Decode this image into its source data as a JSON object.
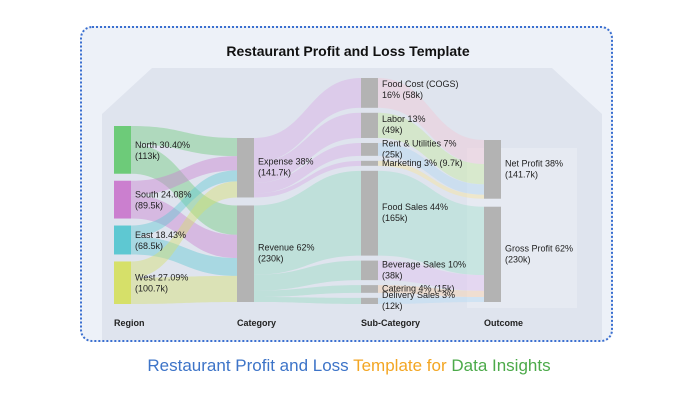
{
  "colors": {
    "frame_border": "#3a6fd0",
    "frame_bg": "#edf1f8",
    "house_silhouette": "#dfe4ee",
    "grey_node": "#b3b3b3",
    "caption_blue": "#3d74c8",
    "caption_orange": "#f3a623",
    "caption_green": "#4caa4a"
  },
  "caption": {
    "part1": "Restaurant Profit and Loss ",
    "part2": "Template for ",
    "part3": "Data Insights"
  },
  "chart_data": {
    "type": "sankey",
    "title": "Restaurant Profit and Loss Template",
    "columns": [
      "Region",
      "Category",
      "Sub-Category",
      "Outcome"
    ],
    "nodes": [
      {
        "id": "north",
        "column": 0,
        "name": "North",
        "pct": "30.40%",
        "value_label": "(113k)",
        "value": 113,
        "color": "#6dcb79"
      },
      {
        "id": "south",
        "column": 0,
        "name": "South",
        "pct": "24.08%",
        "value_label": "(89.5k)",
        "value": 89.5,
        "color": "#cb7fcf"
      },
      {
        "id": "east",
        "column": 0,
        "name": "East",
        "pct": "18.43%",
        "value_label": "(68.5k)",
        "value": 68.5,
        "color": "#5ec8d2"
      },
      {
        "id": "west",
        "column": 0,
        "name": "West",
        "pct": "27.09%",
        "value_label": "(100.7k)",
        "value": 100.7,
        "color": "#d6e069"
      },
      {
        "id": "expense",
        "column": 1,
        "name": "Expense",
        "pct": "38%",
        "value_label": "(141.7k)",
        "value": 141.7,
        "color": "#b3b3b3"
      },
      {
        "id": "revenue",
        "column": 1,
        "name": "Revenue",
        "pct": "62%",
        "value_label": "(230k)",
        "value": 230,
        "color": "#b3b3b3"
      },
      {
        "id": "food_cost",
        "column": 2,
        "name": "Food Cost (COGS)",
        "pct": "16%",
        "value_label": "(58k)",
        "value": 58,
        "color": "#b3b3b3"
      },
      {
        "id": "labor",
        "column": 2,
        "name": "Labor",
        "pct": "13%",
        "value_label": "(49k)",
        "value": 49,
        "color": "#b3b3b3"
      },
      {
        "id": "rent",
        "column": 2,
        "name": "Rent & Utilities",
        "pct": "7%",
        "value_label": "(25k)",
        "value": 25,
        "color": "#b3b3b3"
      },
      {
        "id": "marketing",
        "column": 2,
        "name": "Marketing",
        "pct": "3%",
        "value_label": "(9.7k)",
        "value": 9.7,
        "color": "#b3b3b3"
      },
      {
        "id": "food_sales",
        "column": 2,
        "name": "Food Sales",
        "pct": "44%",
        "value_label": "(165k)",
        "value": 165,
        "color": "#b3b3b3"
      },
      {
        "id": "beverage",
        "column": 2,
        "name": "Beverage Sales",
        "pct": "10%",
        "value_label": "(38k)",
        "value": 38,
        "color": "#b3b3b3"
      },
      {
        "id": "catering",
        "column": 2,
        "name": "Catering",
        "pct": "4%",
        "value_label": "(15k)",
        "value": 15,
        "color": "#b3b3b3"
      },
      {
        "id": "delivery",
        "column": 2,
        "name": "Delivery Sales",
        "pct": "3%",
        "value_label": "(12k)",
        "value": 12,
        "color": "#b3b3b3"
      },
      {
        "id": "net_profit",
        "column": 3,
        "name": "Net Profit",
        "pct": "38%",
        "value_label": "(141.7k)",
        "value": 141.7,
        "color": "#b3b3b3"
      },
      {
        "id": "gross_profit",
        "column": 3,
        "name": "Gross Profit",
        "pct": "62%",
        "value_label": "(230k)",
        "value": 230,
        "color": "#b3b3b3"
      }
    ],
    "links": [
      {
        "source": "north",
        "target": "expense",
        "value": 43.1
      },
      {
        "source": "north",
        "target": "revenue",
        "value": 69.9
      },
      {
        "source": "south",
        "target": "expense",
        "value": 34.1
      },
      {
        "source": "south",
        "target": "revenue",
        "value": 55.4
      },
      {
        "source": "east",
        "target": "expense",
        "value": 26.1
      },
      {
        "source": "east",
        "target": "revenue",
        "value": 42.4
      },
      {
        "source": "west",
        "target": "expense",
        "value": 38.4
      },
      {
        "source": "west",
        "target": "revenue",
        "value": 62.3
      },
      {
        "source": "expense",
        "target": "food_cost",
        "value": 58
      },
      {
        "source": "expense",
        "target": "labor",
        "value": 49
      },
      {
        "source": "expense",
        "target": "rent",
        "value": 25
      },
      {
        "source": "expense",
        "target": "marketing",
        "value": 9.7
      },
      {
        "source": "revenue",
        "target": "food_sales",
        "value": 165
      },
      {
        "source": "revenue",
        "target": "beverage",
        "value": 38
      },
      {
        "source": "revenue",
        "target": "catering",
        "value": 15
      },
      {
        "source": "revenue",
        "target": "delivery",
        "value": 12
      },
      {
        "source": "food_cost",
        "target": "net_profit",
        "value": 58
      },
      {
        "source": "labor",
        "target": "net_profit",
        "value": 49
      },
      {
        "source": "rent",
        "target": "net_profit",
        "value": 25
      },
      {
        "source": "marketing",
        "target": "net_profit",
        "value": 9.7
      },
      {
        "source": "food_sales",
        "target": "gross_profit",
        "value": 165
      },
      {
        "source": "beverage",
        "target": "gross_profit",
        "value": 38
      },
      {
        "source": "catering",
        "target": "gross_profit",
        "value": 15
      },
      {
        "source": "delivery",
        "target": "gross_profit",
        "value": 12
      }
    ]
  }
}
